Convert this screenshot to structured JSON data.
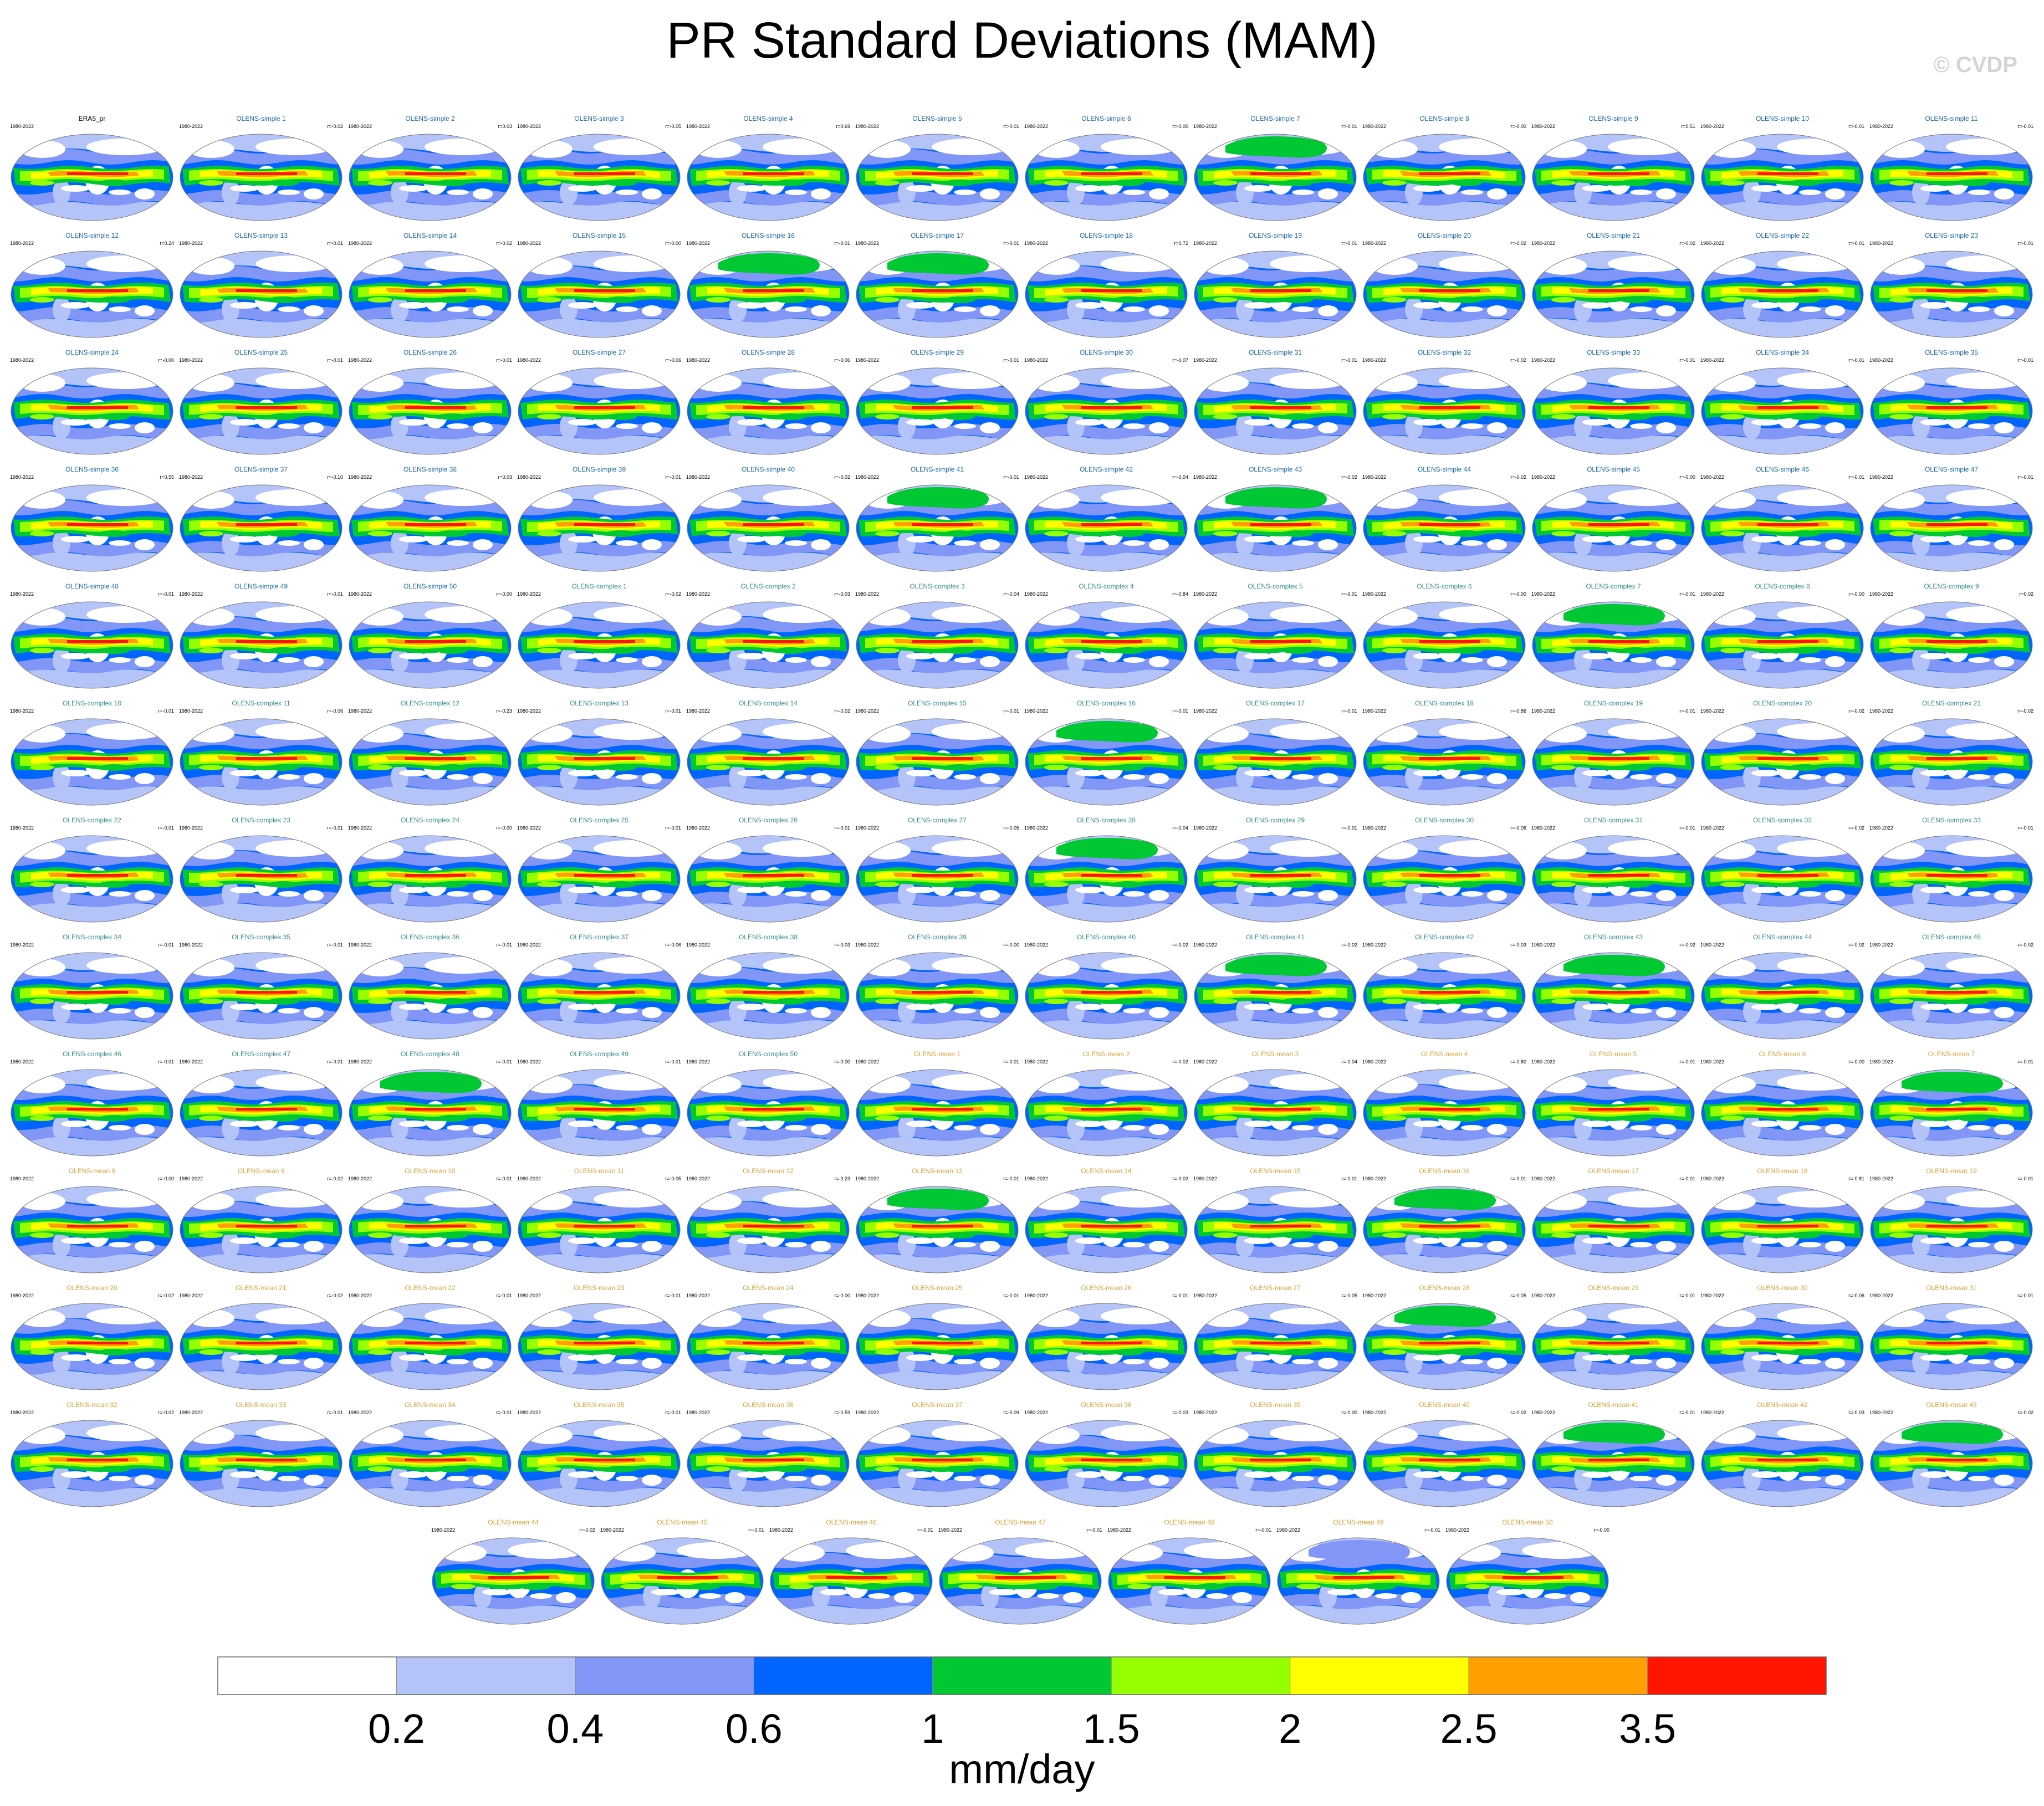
{
  "title": "PR Standard Deviations (MAM)",
  "watermark": "© CVDP",
  "colors": {
    "title_reference": "#000000",
    "title_simple": "#1f6aa5",
    "title_complex": "#3a8c8c",
    "title_mean": "#d8a23a"
  },
  "chart_data": {
    "type": "heatmap",
    "title": "PR Standard Deviations (MAM)",
    "period": "1980-2022",
    "reference": "ERA5_pr",
    "panels": [
      {
        "name": "ERA5_pr",
        "group": "reference",
        "r": "",
        "green": 0
      },
      {
        "name": "OLENS-simple 1",
        "group": "simple",
        "r": "r=-0.02",
        "green": 0
      },
      {
        "name": "OLENS-simple 2",
        "group": "simple",
        "r": "r=0.03",
        "green": 0
      },
      {
        "name": "OLENS-simple 3",
        "group": "simple",
        "r": "r=-0.05",
        "green": 0
      },
      {
        "name": "OLENS-simple 4",
        "group": "simple",
        "r": "r=0.69",
        "green": 0
      },
      {
        "name": "OLENS-simple 5",
        "group": "simple",
        "r": "r=-0.01",
        "green": 0
      },
      {
        "name": "OLENS-simple 6",
        "group": "simple",
        "r": "r=-0.00",
        "green": 0
      },
      {
        "name": "OLENS-simple 7",
        "group": "simple",
        "r": "r=-0.01",
        "green": 1
      },
      {
        "name": "OLENS-simple 8",
        "group": "simple",
        "r": "r=-0.00",
        "green": 0
      },
      {
        "name": "OLENS-simple 9",
        "group": "simple",
        "r": "r=0.51",
        "green": 0
      },
      {
        "name": "OLENS-simple 10",
        "group": "simple",
        "r": "r=-0.01",
        "green": 0
      },
      {
        "name": "OLENS-simple 11",
        "group": "simple",
        "r": "r=-0.01",
        "green": 0
      },
      {
        "name": "OLENS-simple 12",
        "group": "simple",
        "r": "r=0.24",
        "green": 0
      },
      {
        "name": "OLENS-simple 13",
        "group": "simple",
        "r": "r=-0.01",
        "green": 0
      },
      {
        "name": "OLENS-simple 14",
        "group": "simple",
        "r": "r=-0.02",
        "green": 0
      },
      {
        "name": "OLENS-simple 15",
        "group": "simple",
        "r": "r=-0.00",
        "green": 0
      },
      {
        "name": "OLENS-simple 16",
        "group": "simple",
        "r": "r=-0.01",
        "green": 1
      },
      {
        "name": "OLENS-simple 17",
        "group": "simple",
        "r": "r=-0.01",
        "green": 1
      },
      {
        "name": "OLENS-simple 18",
        "group": "simple",
        "r": "r=0.72",
        "green": 0
      },
      {
        "name": "OLENS-simple 19",
        "group": "simple",
        "r": "r=-0.01",
        "green": 0
      },
      {
        "name": "OLENS-simple 20",
        "group": "simple",
        "r": "r=-0.02",
        "green": 0
      },
      {
        "name": "OLENS-simple 21",
        "group": "simple",
        "r": "r=-0.02",
        "green": 0
      },
      {
        "name": "OLENS-simple 22",
        "group": "simple",
        "r": "r=-0.01",
        "green": 0
      },
      {
        "name": "OLENS-simple 23",
        "group": "simple",
        "r": "r=-0.01",
        "green": 0
      },
      {
        "name": "OLENS-simple 24",
        "group": "simple",
        "r": "r=-0.00",
        "green": 0
      },
      {
        "name": "OLENS-simple 25",
        "group": "simple",
        "r": "r=-0.01",
        "green": 0
      },
      {
        "name": "OLENS-simple 26",
        "group": "simple",
        "r": "r=-0.01",
        "green": 0
      },
      {
        "name": "OLENS-simple 27",
        "group": "simple",
        "r": "r=-0.06",
        "green": 0
      },
      {
        "name": "OLENS-simple 28",
        "group": "simple",
        "r": "r=-0.06",
        "green": 0
      },
      {
        "name": "OLENS-simple 29",
        "group": "simple",
        "r": "r=-0.01",
        "green": 0
      },
      {
        "name": "OLENS-simple 30",
        "group": "simple",
        "r": "r=-0.07",
        "green": 0
      },
      {
        "name": "OLENS-simple 31",
        "group": "simple",
        "r": "r=-0.01",
        "green": 0
      },
      {
        "name": "OLENS-simple 32",
        "group": "simple",
        "r": "r=-0.02",
        "green": 0
      },
      {
        "name": "OLENS-simple 33",
        "group": "simple",
        "r": "r=-0.01",
        "green": 0
      },
      {
        "name": "OLENS-simple 34",
        "group": "simple",
        "r": "r=-0.01",
        "green": 0
      },
      {
        "name": "OLENS-simple 35",
        "group": "simple",
        "r": "r=-0.01",
        "green": 0
      },
      {
        "name": "OLENS-simple 36",
        "group": "simple",
        "r": "r=0.55",
        "green": 0
      },
      {
        "name": "OLENS-simple 37",
        "group": "simple",
        "r": "r=-0.10",
        "green": 0
      },
      {
        "name": "OLENS-simple 38",
        "group": "simple",
        "r": "r=0.03",
        "green": 0
      },
      {
        "name": "OLENS-simple 39",
        "group": "simple",
        "r": "r=-0.01",
        "green": 0
      },
      {
        "name": "OLENS-simple 40",
        "group": "simple",
        "r": "r=-0.02",
        "green": 0
      },
      {
        "name": "OLENS-simple 41",
        "group": "simple",
        "r": "r=-0.01",
        "green": 1
      },
      {
        "name": "OLENS-simple 42",
        "group": "simple",
        "r": "r=-0.04",
        "green": 0
      },
      {
        "name": "OLENS-simple 43",
        "group": "simple",
        "r": "r=-0.02",
        "green": 1
      },
      {
        "name": "OLENS-simple 44",
        "group": "simple",
        "r": "r=-0.02",
        "green": 0
      },
      {
        "name": "OLENS-simple 45",
        "group": "simple",
        "r": "r=-0.00",
        "green": 0
      },
      {
        "name": "OLENS-simple 46",
        "group": "simple",
        "r": "r=-0.01",
        "green": 0
      },
      {
        "name": "OLENS-simple 47",
        "group": "simple",
        "r": "r=-0.01",
        "green": 0
      },
      {
        "name": "OLENS-simple 48",
        "group": "simple",
        "r": "r=-0.01",
        "green": 0
      },
      {
        "name": "OLENS-simple 49",
        "group": "simple",
        "r": "r=-0.01",
        "green": 0
      },
      {
        "name": "OLENS-simple 50",
        "group": "simple",
        "r": "r=-0.00",
        "green": 0
      },
      {
        "name": "OLENS-complex 1",
        "group": "complex",
        "r": "r=-0.02",
        "green": 0
      },
      {
        "name": "OLENS-complex 2",
        "group": "complex",
        "r": "r=-0.03",
        "green": 0
      },
      {
        "name": "OLENS-complex 3",
        "group": "complex",
        "r": "r=-0.04",
        "green": 0
      },
      {
        "name": "OLENS-complex 4",
        "group": "complex",
        "r": "r=-0.84",
        "green": 0
      },
      {
        "name": "OLENS-complex 5",
        "group": "complex",
        "r": "r=-0.01",
        "green": 0
      },
      {
        "name": "OLENS-complex 6",
        "group": "complex",
        "r": "r=-0.00",
        "green": 0
      },
      {
        "name": "OLENS-complex 7",
        "group": "complex",
        "r": "r=-0.01",
        "green": 1
      },
      {
        "name": "OLENS-complex 8",
        "group": "complex",
        "r": "r=-0.00",
        "green": 0
      },
      {
        "name": "OLENS-complex 9",
        "group": "complex",
        "r": "r=0.02",
        "green": 0
      },
      {
        "name": "OLENS-complex 10",
        "group": "complex",
        "r": "r=-0.01",
        "green": 0
      },
      {
        "name": "OLENS-complex 11",
        "group": "complex",
        "r": "r=-0.06",
        "green": 0
      },
      {
        "name": "OLENS-complex 12",
        "group": "complex",
        "r": "r=-0.23",
        "green": 0
      },
      {
        "name": "OLENS-complex 13",
        "group": "complex",
        "r": "r=-0.01",
        "green": 0
      },
      {
        "name": "OLENS-complex 14",
        "group": "complex",
        "r": "r=-0.02",
        "green": 0
      },
      {
        "name": "OLENS-complex 15",
        "group": "complex",
        "r": "r=-0.01",
        "green": 0
      },
      {
        "name": "OLENS-complex 16",
        "group": "complex",
        "r": "r=-0.01",
        "green": 1
      },
      {
        "name": "OLENS-complex 17",
        "group": "complex",
        "r": "r=-0.01",
        "green": 0
      },
      {
        "name": "OLENS-complex 18",
        "group": "complex",
        "r": "r=-0.86",
        "green": 0
      },
      {
        "name": "OLENS-complex 19",
        "group": "complex",
        "r": "r=-0.01",
        "green": 0
      },
      {
        "name": "OLENS-complex 20",
        "group": "complex",
        "r": "r=-0.02",
        "green": 0
      },
      {
        "name": "OLENS-complex 21",
        "group": "complex",
        "r": "r=-0.02",
        "green": 0
      },
      {
        "name": "OLENS-complex 22",
        "group": "complex",
        "r": "r=-0.01",
        "green": 0
      },
      {
        "name": "OLENS-complex 23",
        "group": "complex",
        "r": "r=-0.01",
        "green": 0
      },
      {
        "name": "OLENS-complex 24",
        "group": "complex",
        "r": "r=-0.00",
        "green": 0
      },
      {
        "name": "OLENS-complex 25",
        "group": "complex",
        "r": "r=-0.01",
        "green": 0
      },
      {
        "name": "OLENS-complex 26",
        "group": "complex",
        "r": "r=-0.01",
        "green": 0
      },
      {
        "name": "OLENS-complex 27",
        "group": "complex",
        "r": "r=-0.05",
        "green": 0
      },
      {
        "name": "OLENS-complex 28",
        "group": "complex",
        "r": "r=-0.04",
        "green": 1
      },
      {
        "name": "OLENS-complex 29",
        "group": "complex",
        "r": "r=-0.01",
        "green": 0
      },
      {
        "name": "OLENS-complex 30",
        "group": "complex",
        "r": "r=-0.06",
        "green": 0
      },
      {
        "name": "OLENS-complex 31",
        "group": "complex",
        "r": "r=-0.01",
        "green": 0
      },
      {
        "name": "OLENS-complex 32",
        "group": "complex",
        "r": "r=-0.02",
        "green": 0
      },
      {
        "name": "OLENS-complex 33",
        "group": "complex",
        "r": "r=-0.01",
        "green": 0
      },
      {
        "name": "OLENS-complex 34",
        "group": "complex",
        "r": "r=-0.01",
        "green": 0
      },
      {
        "name": "OLENS-complex 35",
        "group": "complex",
        "r": "r=-0.01",
        "green": 0
      },
      {
        "name": "OLENS-complex 36",
        "group": "complex",
        "r": "r=-0.01",
        "green": 0
      },
      {
        "name": "OLENS-complex 37",
        "group": "complex",
        "r": "r=-0.06",
        "green": 0
      },
      {
        "name": "OLENS-complex 38",
        "group": "complex",
        "r": "r=-0.03",
        "green": 0
      },
      {
        "name": "OLENS-complex 39",
        "group": "complex",
        "r": "r=-0.00",
        "green": 0
      },
      {
        "name": "OLENS-complex 40",
        "group": "complex",
        "r": "r=-0.02",
        "green": 0
      },
      {
        "name": "OLENS-complex 41",
        "group": "complex",
        "r": "r=-0.02",
        "green": 1
      },
      {
        "name": "OLENS-complex 42",
        "group": "complex",
        "r": "r=-0.03",
        "green": 0
      },
      {
        "name": "OLENS-complex 43",
        "group": "complex",
        "r": "r=-0.02",
        "green": 1
      },
      {
        "name": "OLENS-complex 44",
        "group": "complex",
        "r": "r=-0.02",
        "green": 0
      },
      {
        "name": "OLENS-complex 45",
        "group": "complex",
        "r": "r=-0.02",
        "green": 0
      },
      {
        "name": "OLENS-complex 46",
        "group": "complex",
        "r": "r=-0.01",
        "green": 0
      },
      {
        "name": "OLENS-complex 47",
        "group": "complex",
        "r": "r=-0.01",
        "green": 0
      },
      {
        "name": "OLENS-complex 48",
        "group": "complex",
        "r": "r=-0.01",
        "green": 1
      },
      {
        "name": "OLENS-complex 49",
        "group": "complex",
        "r": "r=-0.01",
        "green": 0
      },
      {
        "name": "OLENS-complex 50",
        "group": "complex",
        "r": "r=-0.00",
        "green": 0
      },
      {
        "name": "OLENS-mean 1",
        "group": "mean",
        "r": "r=-0.01",
        "green": 0
      },
      {
        "name": "OLENS-mean 2",
        "group": "mean",
        "r": "r=-0.02",
        "green": 0
      },
      {
        "name": "OLENS-mean 3",
        "group": "mean",
        "r": "r=-0.04",
        "green": 0
      },
      {
        "name": "OLENS-mean 4",
        "group": "mean",
        "r": "r=-0.80",
        "green": 0
      },
      {
        "name": "OLENS-mean 5",
        "group": "mean",
        "r": "r=-0.01",
        "green": 0
      },
      {
        "name": "OLENS-mean 6",
        "group": "mean",
        "r": "r=-0.00",
        "green": 0
      },
      {
        "name": "OLENS-mean 7",
        "group": "mean",
        "r": "r=-0.01",
        "green": 1
      },
      {
        "name": "OLENS-mean 8",
        "group": "mean",
        "r": "r=-0.00",
        "green": 0
      },
      {
        "name": "OLENS-mean 9",
        "group": "mean",
        "r": "r=-0.02",
        "green": 0
      },
      {
        "name": "OLENS-mean 10",
        "group": "mean",
        "r": "r=-0.01",
        "green": 0
      },
      {
        "name": "OLENS-mean 11",
        "group": "mean",
        "r": "r=-0.05",
        "green": 0
      },
      {
        "name": "OLENS-mean 12",
        "group": "mean",
        "r": "r=-0.23",
        "green": 0
      },
      {
        "name": "OLENS-mean 13",
        "group": "mean",
        "r": "r=-0.01",
        "green": 1
      },
      {
        "name": "OLENS-mean 14",
        "group": "mean",
        "r": "r=-0.02",
        "green": 0
      },
      {
        "name": "OLENS-mean 15",
        "group": "mean",
        "r": "r=-0.01",
        "green": 0
      },
      {
        "name": "OLENS-mean 16",
        "group": "mean",
        "r": "r=-0.01",
        "green": 1
      },
      {
        "name": "OLENS-mean 17",
        "group": "mean",
        "r": "r=-0.01",
        "green": 0
      },
      {
        "name": "OLENS-mean 18",
        "group": "mean",
        "r": "r=-0.81",
        "green": 0
      },
      {
        "name": "OLENS-mean 19",
        "group": "mean",
        "r": "r=-0.01",
        "green": 0
      },
      {
        "name": "OLENS-mean 20",
        "group": "mean",
        "r": "r=-0.02",
        "green": 0
      },
      {
        "name": "OLENS-mean 21",
        "group": "mean",
        "r": "r=-0.02",
        "green": 0
      },
      {
        "name": "OLENS-mean 22",
        "group": "mean",
        "r": "r=-0.01",
        "green": 0
      },
      {
        "name": "OLENS-mean 23",
        "group": "mean",
        "r": "r=-0.01",
        "green": 0
      },
      {
        "name": "OLENS-mean 24",
        "group": "mean",
        "r": "r=-0.00",
        "green": 0
      },
      {
        "name": "OLENS-mean 25",
        "group": "mean",
        "r": "r=-0.01",
        "green": 0
      },
      {
        "name": "OLENS-mean 26",
        "group": "mean",
        "r": "r=-0.01",
        "green": 0
      },
      {
        "name": "OLENS-mean 27",
        "group": "mean",
        "r": "r=-0.05",
        "green": 0
      },
      {
        "name": "OLENS-mean 28",
        "group": "mean",
        "r": "r=-0.05",
        "green": 1
      },
      {
        "name": "OLENS-mean 29",
        "group": "mean",
        "r": "r=-0.01",
        "green": 0
      },
      {
        "name": "OLENS-mean 30",
        "group": "mean",
        "r": "r=-0.06",
        "green": 0
      },
      {
        "name": "OLENS-mean 31",
        "group": "mean",
        "r": "r=-0.01",
        "green": 0
      },
      {
        "name": "OLENS-mean 32",
        "group": "mean",
        "r": "r=-0.02",
        "green": 0
      },
      {
        "name": "OLENS-mean 33",
        "group": "mean",
        "r": "r=-0.01",
        "green": 0
      },
      {
        "name": "OLENS-mean 34",
        "group": "mean",
        "r": "r=-0.01",
        "green": 0
      },
      {
        "name": "OLENS-mean 35",
        "group": "mean",
        "r": "r=-0.01",
        "green": 0
      },
      {
        "name": "OLENS-mean 36",
        "group": "mean",
        "r": "r=-0.59",
        "green": 0
      },
      {
        "name": "OLENS-mean 37",
        "group": "mean",
        "r": "r=-0.09",
        "green": 0
      },
      {
        "name": "OLENS-mean 38",
        "group": "mean",
        "r": "r=-0.03",
        "green": 0
      },
      {
        "name": "OLENS-mean 39",
        "group": "mean",
        "r": "r=-0.00",
        "green": 0
      },
      {
        "name": "OLENS-mean 40",
        "group": "mean",
        "r": "r=-0.02",
        "green": 0
      },
      {
        "name": "OLENS-mean 41",
        "group": "mean",
        "r": "r=-0.01",
        "green": 1
      },
      {
        "name": "OLENS-mean 42",
        "group": "mean",
        "r": "r=-0.03",
        "green": 0
      },
      {
        "name": "OLENS-mean 43",
        "group": "mean",
        "r": "r=-0.02",
        "green": 1
      },
      {
        "name": "OLENS-mean 44",
        "group": "mean",
        "r": "r=-0.02",
        "green": 0
      },
      {
        "name": "OLENS-mean 45",
        "group": "mean",
        "r": "r=-0.01",
        "green": 0
      },
      {
        "name": "OLENS-mean 46",
        "group": "mean",
        "r": "r=-0.01",
        "green": 0
      },
      {
        "name": "OLENS-mean 47",
        "group": "mean",
        "r": "r=-0.01",
        "green": 0
      },
      {
        "name": "OLENS-mean 48",
        "group": "mean",
        "r": "r=-0.01",
        "green": 0
      },
      {
        "name": "OLENS-mean 49",
        "group": "mean",
        "r": "r=-0.01",
        "green": 2
      },
      {
        "name": "OLENS-mean 50",
        "group": "mean",
        "r": "r=-0.00",
        "green": 0
      }
    ],
    "colorbar": {
      "levels": [
        "0.2",
        "0.4",
        "0.6",
        "1",
        "1.5",
        "2",
        "2.5",
        "3.5"
      ],
      "colors": [
        "#ffffff",
        "#b4c3f8",
        "#8296f8",
        "#0064ff",
        "#00c832",
        "#96ff00",
        "#ffff00",
        "#ffa000",
        "#ff1400"
      ],
      "units": "mm/day"
    }
  }
}
